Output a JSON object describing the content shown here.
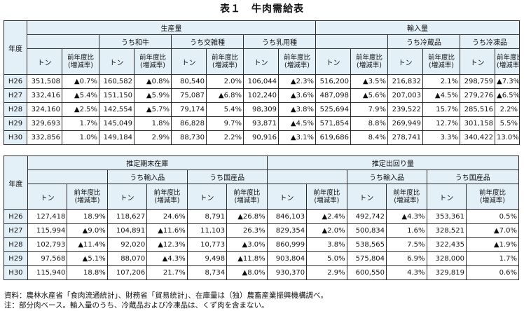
{
  "title": "表１　牛肉需給表",
  "table1": {
    "year_header": "年度",
    "groups": {
      "production": "生産量",
      "imports": "輸入量"
    },
    "subgroups": {
      "wagyu": "うち和牛",
      "crossbred": "うち交雑種",
      "dairy": "うち乳用種",
      "chilled": "うち冷蔵品",
      "frozen": "うち冷凍品"
    },
    "col_ton": "トン",
    "col_yoy_1": "前年度比",
    "col_yoy_2": "(増減率)",
    "rows": [
      [
        "H26",
        "351,508",
        "▲0.7%",
        "160,582",
        "▲0.8%",
        "80,540",
        "2.0%",
        "106,044",
        "▲2.3%",
        "516,200",
        "▲3.5%",
        "216,832",
        "2.1%",
        "298,759",
        "▲7.3%"
      ],
      [
        "H27",
        "332,416",
        "▲5.4%",
        "151,150",
        "▲5.9%",
        "75,087",
        "▲6.8%",
        "102,240",
        "▲3.6%",
        "487,098",
        "▲5.6%",
        "207,003",
        "▲4.5%",
        "279,276",
        "▲6.5%"
      ],
      [
        "H28",
        "324,160",
        "▲2.5%",
        "142,554",
        "▲5.7%",
        "79,174",
        "5.4%",
        "98,309",
        "▲3.8%",
        "525,694",
        "7.9%",
        "239,522",
        "15.7%",
        "285,516",
        "2.2%"
      ],
      [
        "H29",
        "329,693",
        "1.7%",
        "145,049",
        "1.8%",
        "86,828",
        "9.7%",
        "93,871",
        "▲4.5%",
        "571,854",
        "8.8%",
        "269,949",
        "12.7%",
        "301,158",
        "5.5%"
      ],
      [
        "H30",
        "332,856",
        "1.0%",
        "149,184",
        "2.9%",
        "88,730",
        "2.2%",
        "90,916",
        "▲3.1%",
        "619,686",
        "8.4%",
        "278,741",
        "3.3%",
        "340,422",
        "13.0%"
      ]
    ]
  },
  "table2": {
    "year_header": "年度",
    "groups": {
      "stock": "推定期末在庫",
      "shipment": "推定出回り量"
    },
    "subgroups": {
      "imported": "うち輸入品",
      "domestic": "うち国産品"
    },
    "col_ton": "トン",
    "col_yoy_1": "前年度比",
    "col_yoy_2": "(増減率)",
    "rows": [
      [
        "H26",
        "127,418",
        "18.9%",
        "118,627",
        "24.6%",
        "8,791",
        "▲26.8%",
        "846,103",
        "▲2.4%",
        "492,742",
        "▲4.3%",
        "353,361",
        "0.5%"
      ],
      [
        "H27",
        "115,994",
        "▲9.0%",
        "104,891",
        "▲11.6%",
        "11,103",
        "26.3%",
        "829,354",
        "▲2.0%",
        "500,834",
        "1.6%",
        "328,521",
        "▲7.0%"
      ],
      [
        "H28",
        "102,793",
        "▲11.4%",
        "92,020",
        "▲12.3%",
        "10,773",
        "▲3.0%",
        "860,999",
        "3.8%",
        "538,565",
        "7.5%",
        "322,435",
        "▲1.9%"
      ],
      [
        "H29",
        "97,568",
        "▲5.1%",
        "88,070",
        "▲4.3%",
        "9,498",
        "▲11.8%",
        "903,804",
        "5.0%",
        "575,804",
        "6.9%",
        "328,000",
        "1.7%"
      ],
      [
        "H30",
        "115,940",
        "18.8%",
        "107,206",
        "21.7%",
        "8,734",
        "▲8.0%",
        "930,370",
        "2.9%",
        "600,550",
        "4.3%",
        "329,819",
        "0.6%"
      ]
    ]
  },
  "notes": {
    "source": "資料：農林水産省「食肉流通統計」、財務省「貿易統計」、在庫量は（独）農畜産業振興機構調べ。",
    "note": "注：部分肉ベース。輸入量のうち、冷蔵品および冷凍品は、くず肉を含まない。"
  }
}
